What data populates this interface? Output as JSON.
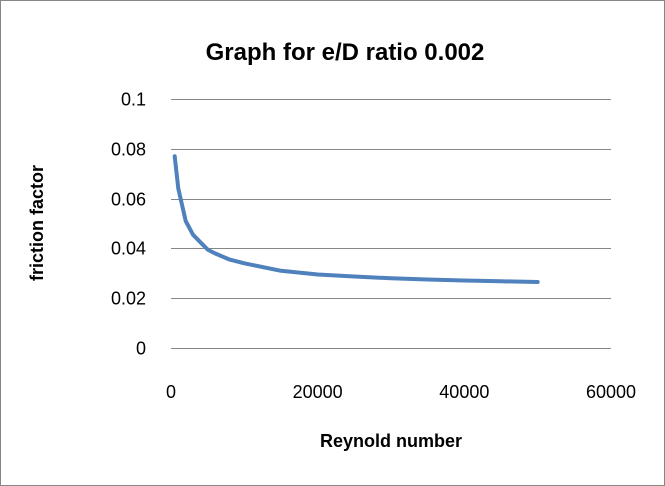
{
  "chart_data": {
    "type": "line",
    "title": "Graph for e/D ratio 0.002",
    "xlabel": "Reynold number",
    "ylabel": "friction factor",
    "xlim": [
      0,
      60000
    ],
    "ylim": [
      0,
      0.1
    ],
    "x_ticks": [
      "0",
      "20000",
      "40000",
      "60000"
    ],
    "y_ticks": [
      "0",
      "0.02",
      "0.04",
      "0.06",
      "0.08",
      "0.1"
    ],
    "grid": "horizontal",
    "legend": "none",
    "series": [
      {
        "color": "#4f81bd",
        "x": [
          500,
          1000,
          2000,
          3000,
          4000,
          5000,
          6000,
          8000,
          10000,
          15000,
          20000,
          25000,
          30000,
          35000,
          40000,
          45000,
          50000
        ],
        "y": [
          0.077,
          0.064,
          0.051,
          0.0455,
          0.0425,
          0.0395,
          0.038,
          0.0355,
          0.034,
          0.031,
          0.0295,
          0.0287,
          0.028,
          0.0275,
          0.0271,
          0.0268,
          0.0265
        ]
      }
    ]
  }
}
